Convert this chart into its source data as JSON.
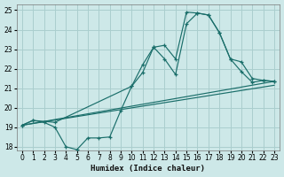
{
  "xlabel": "Humidex (Indice chaleur)",
  "ylabel": "",
  "xlim": [
    -0.5,
    23.5
  ],
  "ylim": [
    17.8,
    25.3
  ],
  "yticks": [
    18,
    19,
    20,
    21,
    22,
    23,
    24,
    25
  ],
  "xticks": [
    0,
    1,
    2,
    3,
    4,
    5,
    6,
    7,
    8,
    9,
    10,
    11,
    12,
    13,
    14,
    15,
    16,
    17,
    18,
    19,
    20,
    21,
    22,
    23
  ],
  "bg_color": "#cde8e8",
  "grid_color": "#aacece",
  "line_color": "#1a6e6a",
  "line1_x": [
    0,
    1,
    2,
    3,
    4,
    5,
    6,
    7,
    8,
    9,
    10,
    11,
    12,
    13,
    14,
    15,
    16,
    17,
    18,
    19,
    20,
    21,
    22,
    23
  ],
  "line1_y": [
    19.1,
    19.35,
    19.25,
    19.0,
    18.0,
    17.85,
    18.45,
    18.45,
    18.5,
    19.85,
    21.1,
    21.8,
    23.1,
    23.2,
    22.5,
    24.9,
    24.85,
    24.75,
    23.85,
    22.5,
    21.85,
    21.3,
    21.4,
    21.35
  ],
  "line2_x": [
    0,
    1,
    3,
    10,
    11,
    12,
    13,
    14,
    15,
    16,
    17,
    18,
    19,
    20,
    21,
    22,
    23
  ],
  "line2_y": [
    19.1,
    19.35,
    19.25,
    21.1,
    22.2,
    23.1,
    22.5,
    21.7,
    24.3,
    24.85,
    24.75,
    23.85,
    22.5,
    22.35,
    21.5,
    21.4,
    21.35
  ],
  "line3_x": [
    0,
    23
  ],
  "line3_y": [
    19.1,
    21.15
  ],
  "line4_x": [
    0,
    23
  ],
  "line4_y": [
    19.1,
    21.35
  ]
}
